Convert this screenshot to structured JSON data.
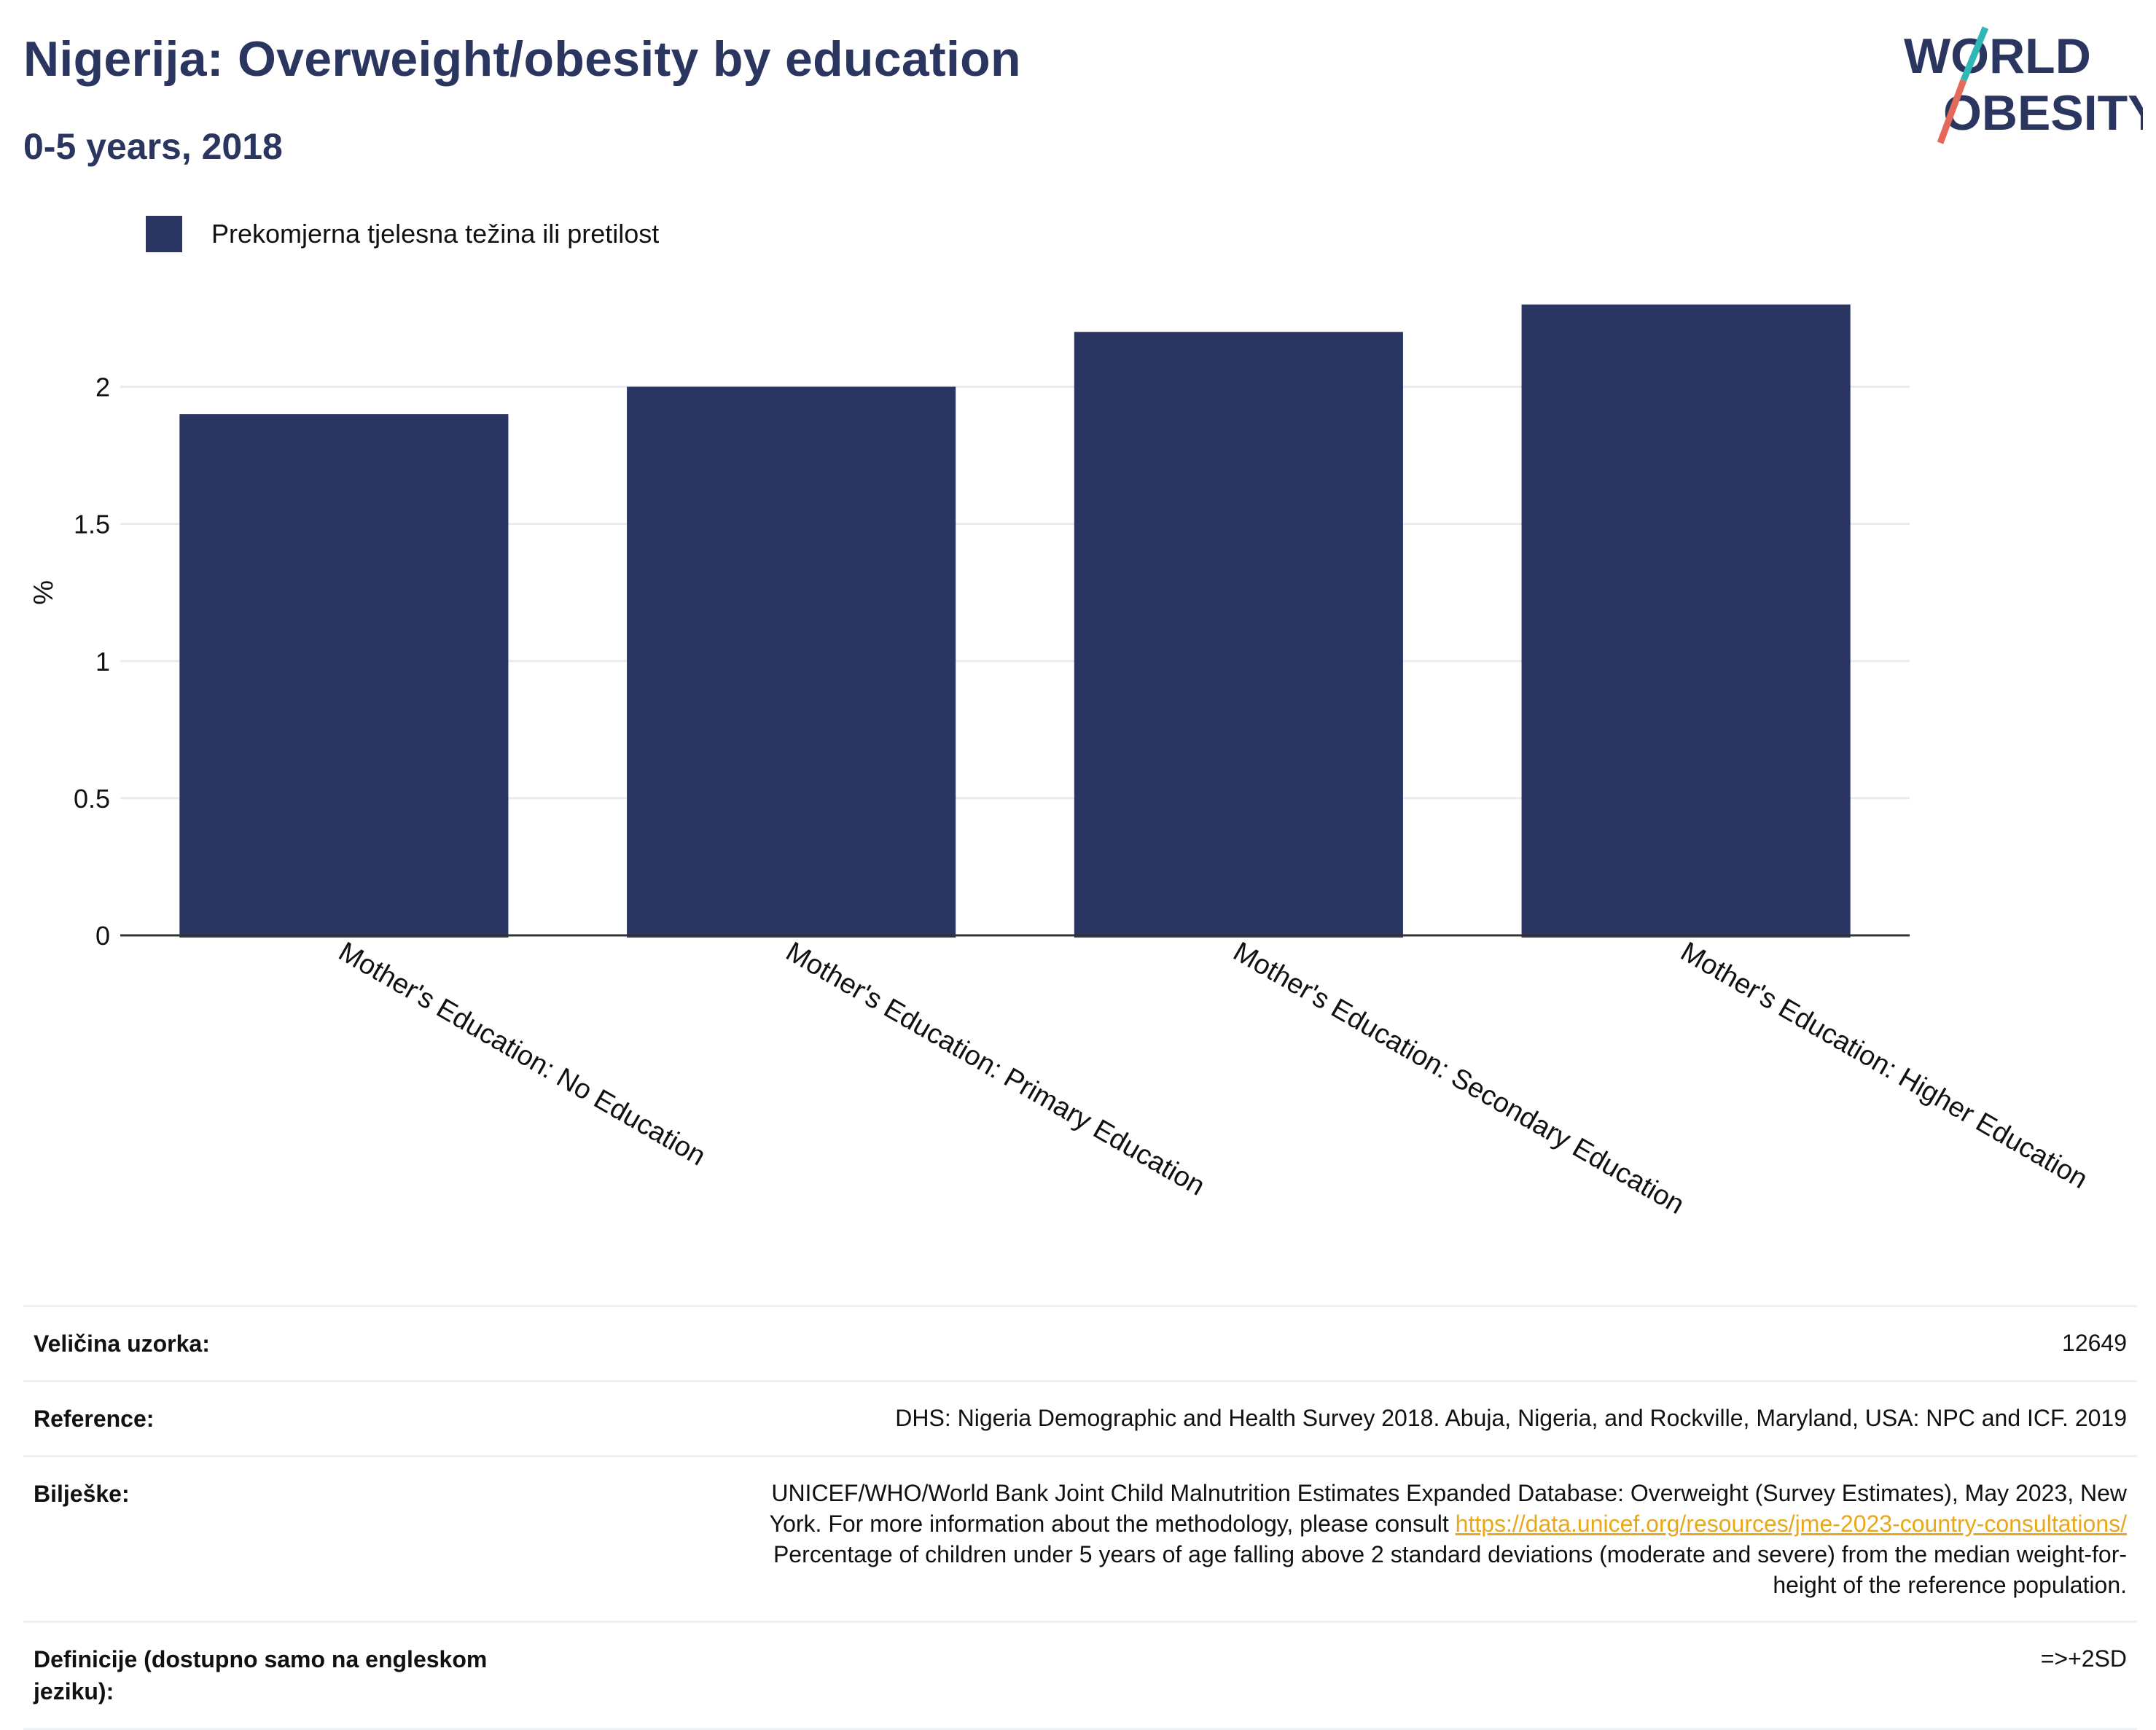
{
  "header": {
    "title": "Nigerija: Overweight/obesity by education",
    "subtitle": "0-5 years, 2018"
  },
  "logo": {
    "line1": "WORLD",
    "line2": "OBESITY",
    "colors": {
      "text": "#2a3560",
      "slash_top": "#2fb8b3",
      "slash_bottom": "#e5695b"
    }
  },
  "chart_data": {
    "type": "bar",
    "categories": [
      "Mother's Education: No Education",
      "Mother's Education: Primary Education",
      "Mother's Education: Secondary Education",
      "Mother's Education: Higher Education"
    ],
    "series": [
      {
        "name": "Prekomjerna tjelesna težina ili pretilost",
        "values": [
          1.9,
          2.0,
          2.2,
          2.3
        ],
        "color": "#2a3661"
      }
    ],
    "ylabel": "%",
    "xlabel": "",
    "ylim": [
      0,
      2.4
    ],
    "yticks": [
      0,
      0.5,
      1,
      1.5,
      2
    ],
    "ytick_labels": [
      "0",
      "0.5",
      "1",
      "1.5",
      "2"
    ],
    "grid": true,
    "legend_position": "top-left"
  },
  "info": [
    {
      "key": "Veličina uzorka:",
      "value": "12649"
    },
    {
      "key": "Reference:",
      "value": "DHS: Nigeria Demographic and Health Survey 2018. Abuja, Nigeria, and Rockville, Maryland, USA: NPC and ICF. 2019"
    },
    {
      "key": "Bilješke:",
      "value_lines": [
        "UNICEF/WHO/World Bank Joint Child Malnutrition Estimates Expanded Database: Overweight (Survey Estimates), May 2023, New",
        "York. For more information about the methodology, please consult ",
        "https://data.unicef.org/resources/jme-2023-country-consultations/",
        "Percentage of children under 5 years of age falling above 2 standard deviations (moderate and severe) from the median weight-for-",
        "height of the reference population."
      ]
    },
    {
      "key": "Definicije (dostupno samo na engleskom jeziku):",
      "value": "=>+2SD"
    }
  ]
}
